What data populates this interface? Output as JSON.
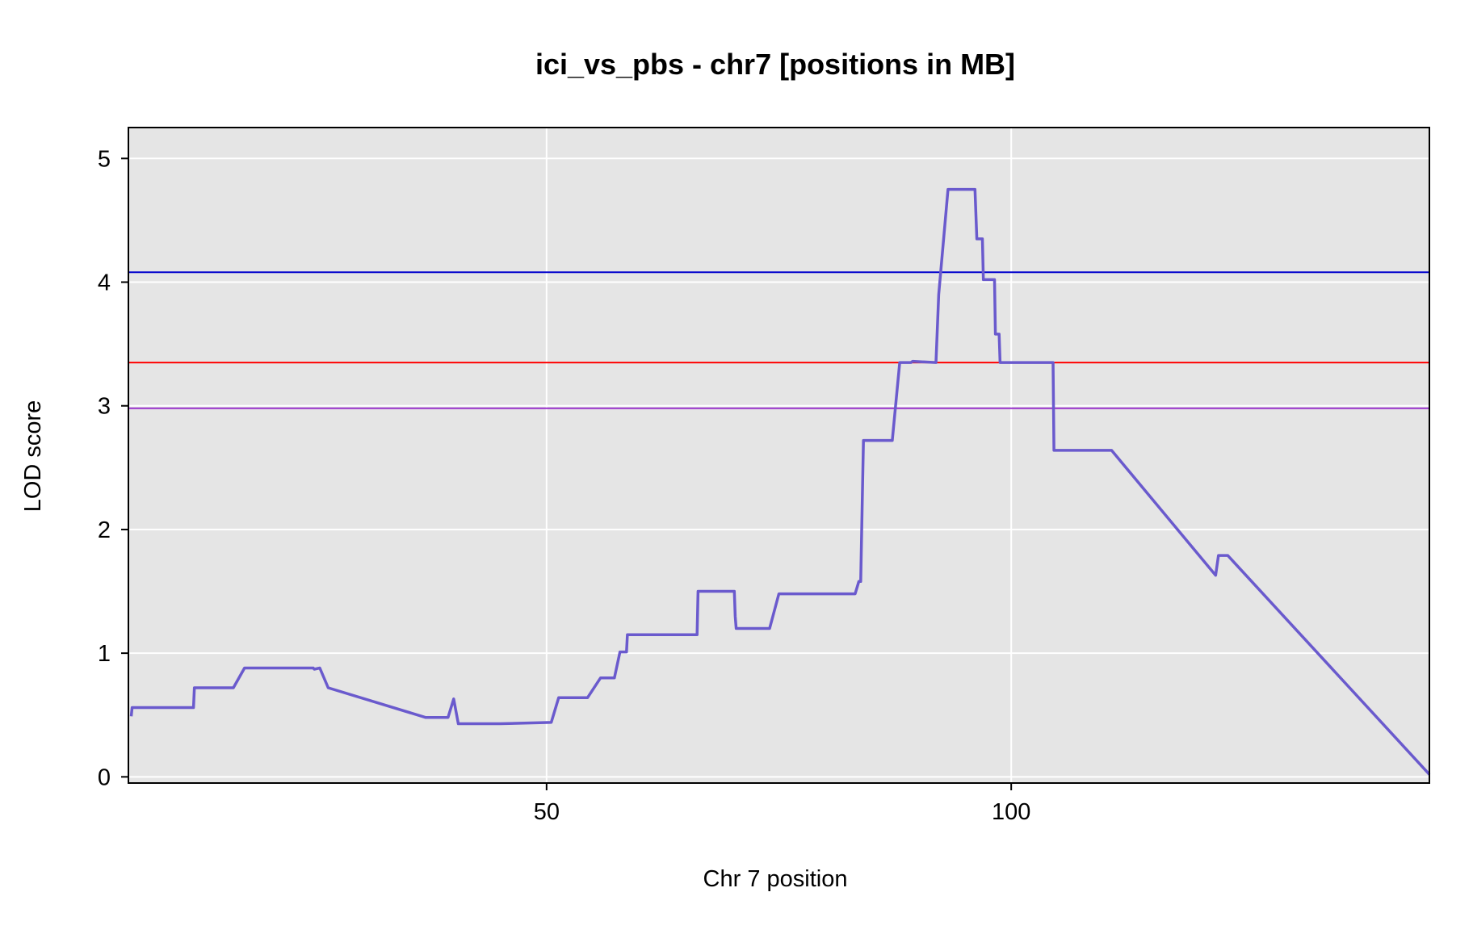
{
  "chart_data": {
    "type": "line",
    "title": "ici_vs_pbs - chr7 [positions in MB]",
    "xlabel": "Chr 7 position",
    "ylabel": "LOD score",
    "xlim": [
      5,
      145
    ],
    "ylim": [
      -0.05,
      5.25
    ],
    "x_ticks": [
      50,
      100
    ],
    "y_ticks": [
      0,
      1,
      2,
      3,
      4,
      5
    ],
    "grid": true,
    "background": "#e5e5e5",
    "frame_color": "#000000",
    "series": [
      {
        "color": "#6a5acd",
        "x": [
          5.3,
          5.4,
          12.0,
          12.1,
          16.3,
          17.5,
          24.9,
          25.0,
          25.6,
          26.5,
          37.0,
          39.4,
          40.0,
          40.5,
          45.0,
          50.5,
          51.3,
          54.4,
          55.8,
          57.3,
          57.9,
          58.6,
          58.7,
          66.2,
          66.3,
          70.2,
          70.3,
          70.4,
          74.0,
          75.0,
          83.2,
          83.6,
          83.8,
          84.1,
          87.2,
          88.0,
          89.2,
          89.4,
          91.9,
          92.2,
          93.2,
          96.1,
          96.3,
          96.9,
          97.0,
          98.2,
          98.3,
          98.7,
          98.8,
          104.5,
          104.6,
          110.8,
          122.0,
          122.3,
          123.3,
          145.0
        ],
        "y": [
          0.49,
          0.56,
          0.56,
          0.72,
          0.72,
          0.88,
          0.88,
          0.87,
          0.88,
          0.72,
          0.48,
          0.48,
          0.63,
          0.43,
          0.43,
          0.44,
          0.64,
          0.64,
          0.8,
          0.8,
          1.01,
          1.01,
          1.15,
          1.15,
          1.5,
          1.5,
          1.3,
          1.2,
          1.2,
          1.48,
          1.48,
          1.58,
          1.58,
          2.72,
          2.72,
          3.35,
          3.35,
          3.36,
          3.35,
          3.9,
          4.75,
          4.75,
          4.35,
          4.35,
          4.02,
          4.02,
          3.58,
          3.58,
          3.35,
          3.35,
          2.64,
          2.64,
          1.63,
          1.79,
          1.79,
          0.02
        ]
      }
    ],
    "threshold_lines": [
      {
        "y": 4.08,
        "color": "#0000cd"
      },
      {
        "y": 3.35,
        "color": "#ff0000"
      },
      {
        "y": 2.98,
        "color": "#9932cc"
      }
    ]
  }
}
